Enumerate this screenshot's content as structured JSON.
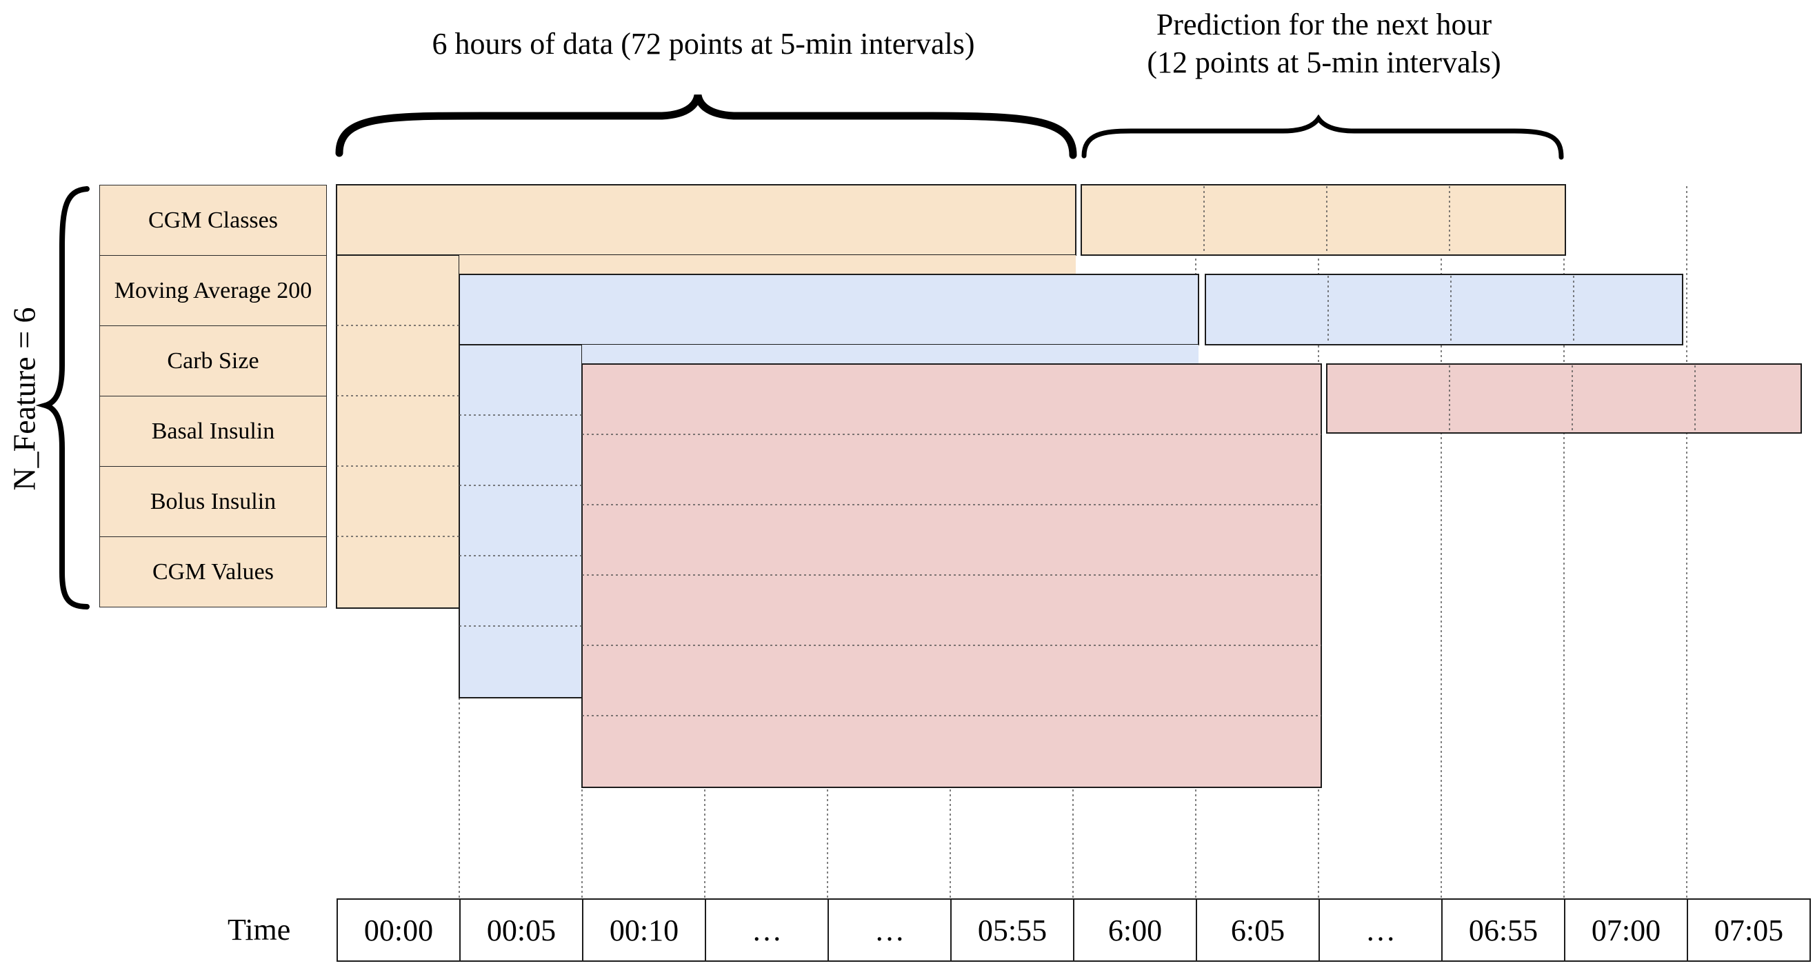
{
  "titles": {
    "history": "6 hours of data (72 points at 5-min intervals)",
    "prediction_line1": "Prediction for the next hour",
    "prediction_line2": "(12 points at 5-min intervals)"
  },
  "n_feature_label": "N_Feature = 6",
  "features": [
    "CGM Classes",
    "Moving Average 200",
    "Carb Size",
    "Basal Insulin",
    "Bolus Insulin",
    "CGM Values"
  ],
  "time_label": "Time",
  "time_ticks": [
    "00:00",
    "00:05",
    "00:10",
    "…",
    "…",
    "05:55",
    "6:00",
    "6:05",
    "…",
    "06:55",
    "07:00",
    "07:05"
  ],
  "colors": {
    "orange": "#f9e4ca",
    "blue": "#dce6f8",
    "red": "#efcfcd",
    "border": "#1c1c1c"
  }
}
